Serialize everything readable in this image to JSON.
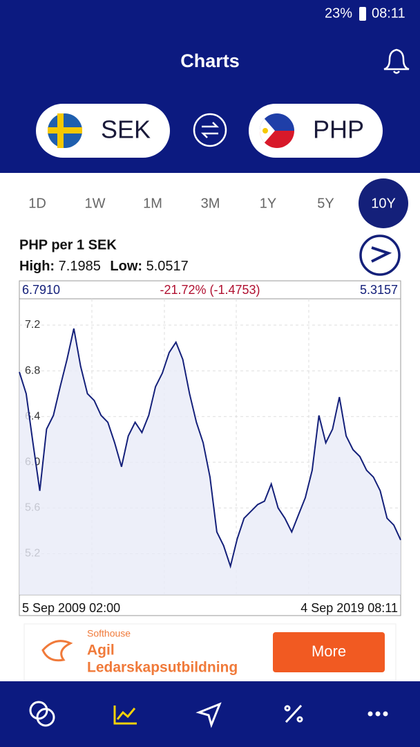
{
  "status_bar": {
    "battery": "23%",
    "time": "08:11"
  },
  "header": {
    "title": "Charts"
  },
  "currencies": {
    "from": "SEK",
    "to": "PHP"
  },
  "ranges": {
    "items": [
      "1D",
      "1W",
      "1M",
      "3M",
      "1Y",
      "5Y",
      "10Y"
    ],
    "selected": 6
  },
  "info": {
    "pair": "PHP per 1 SEK",
    "high_label": "High:",
    "high": "7.1985",
    "low_label": "Low:",
    "low": "5.0517"
  },
  "chart_data": {
    "type": "line",
    "start_value": "6.7910",
    "change": "-21.72% (-1.4753)",
    "end_value": "5.3157",
    "x_start_label": "5 Sep 2009 02:00",
    "x_end_label": "4 Sep 2019 08:11",
    "values": [
      6.79,
      6.6,
      6.17,
      5.75,
      6.29,
      6.41,
      6.66,
      6.9,
      7.17,
      6.84,
      6.6,
      6.54,
      6.41,
      6.35,
      6.17,
      5.96,
      6.23,
      6.35,
      6.26,
      6.41,
      6.66,
      6.78,
      6.96,
      7.05,
      6.9,
      6.6,
      6.35,
      6.17,
      5.87,
      5.39,
      5.27,
      5.09,
      5.33,
      5.51,
      5.57,
      5.63,
      5.66,
      5.81,
      5.6,
      5.51,
      5.39,
      5.54,
      5.69,
      5.93,
      6.41,
      6.17,
      6.29,
      6.57,
      6.23,
      6.11,
      6.05,
      5.93,
      5.87,
      5.75,
      5.51,
      5.45,
      5.32
    ],
    "ylim": [
      4.84,
      7.43
    ],
    "yticks": [
      {
        "value": 5.2,
        "label": "5.2"
      },
      {
        "value": 5.6,
        "label": "5.6"
      },
      {
        "value": 6,
        "label": "6.0"
      },
      {
        "value": 6.4,
        "label": "6.4"
      },
      {
        "value": 6.8,
        "label": "6.8"
      },
      {
        "value": 7.2,
        "label": "7.2"
      }
    ],
    "color": "#14207a",
    "fill": "#e8ebf7",
    "grid": true
  },
  "ad": {
    "brand": "Softhouse",
    "headline_1": "Agil",
    "headline_2": "Ledarskapsutbildning",
    "button": "More"
  }
}
